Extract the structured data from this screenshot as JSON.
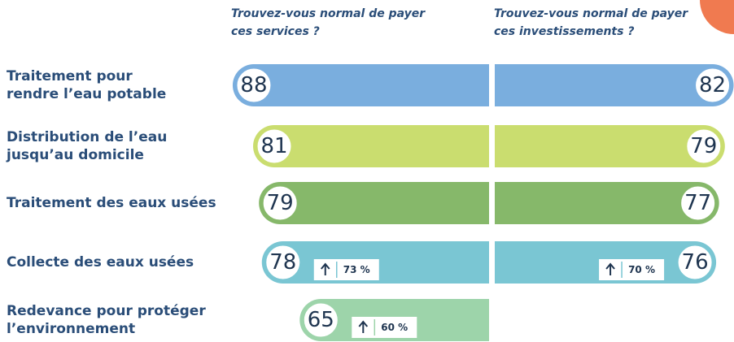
{
  "chart_data": {
    "type": "butterfly_bar",
    "categories": [
      "Traitement pour\nrendre l’eau potable",
      "Distribution de l’eau\njusqu’au domicile",
      "Traitement des eaux usées",
      "Collecte des eaux usées",
      "Redevance pour protéger\nl’environnement"
    ],
    "colors": [
      "#7aaede",
      "#cadd6f",
      "#86b86a",
      "#7ac6d3",
      "#9dd4aa"
    ],
    "xlim": [
      0,
      100
    ],
    "series": [
      {
        "name": "Trouvez-vous normal de payer\nces services ?",
        "values": [
          88,
          81,
          79,
          78,
          65
        ],
        "previous": [
          null,
          null,
          null,
          73,
          60
        ],
        "previous_labels": [
          null,
          null,
          null,
          "73 %",
          "60 %"
        ]
      },
      {
        "name": "Trouvez-vous normal de payer\nces investissements ?",
        "values": [
          82,
          79,
          77,
          76,
          null
        ],
        "previous": [
          null,
          null,
          null,
          70,
          null
        ],
        "previous_labels": [
          null,
          null,
          null,
          "70 %",
          null
        ]
      }
    ]
  }
}
